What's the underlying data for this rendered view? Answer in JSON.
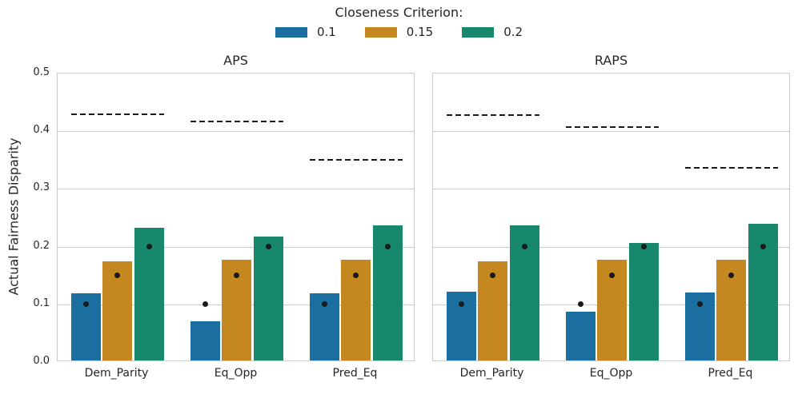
{
  "legend": {
    "title": "Closeness Criterion:",
    "entries": [
      {
        "label": "0.1",
        "color": "#1B6FA0"
      },
      {
        "label": "0.15",
        "color": "#C5871F"
      },
      {
        "label": "0.2",
        "color": "#17886B"
      }
    ]
  },
  "chart_data": {
    "type": "bar",
    "title": "",
    "xlabel": "",
    "ylabel": "Actual Fairness Disparity",
    "ylim": [
      0,
      0.5
    ],
    "yticks": [
      0,
      0.1,
      0.2,
      0.3,
      0.4,
      0.5
    ],
    "ytick_labels": [
      "0.0",
      "0.1",
      "0.2",
      "0.3",
      "0.4",
      "0.5"
    ],
    "categories": [
      "Dem_Parity",
      "Eq_Opp",
      "Pred_Eq"
    ],
    "grid": true,
    "legend_position": "top-center",
    "marker_color": "#1a1a1a",
    "dashed_line_color": "#1a1a1a",
    "grid_color": "#cccccc",
    "panels": [
      {
        "title": "APS",
        "series": [
          {
            "name": "0.1",
            "color": "#1B6FA0",
            "dot_value": 0.1,
            "values": [
              0.116,
              0.068,
              0.116
            ]
          },
          {
            "name": "0.15",
            "color": "#C5871F",
            "dot_value": 0.15,
            "values": [
              0.172,
              0.174,
              0.174
            ]
          },
          {
            "name": "0.2",
            "color": "#17886B",
            "dot_value": 0.2,
            "values": [
              0.23,
              0.215,
              0.234
            ]
          }
        ],
        "dashed_reference_lines": [
          0.43,
          0.417,
          0.35
        ]
      },
      {
        "title": "RAPS",
        "series": [
          {
            "name": "0.1",
            "color": "#1B6FA0",
            "dot_value": 0.1,
            "values": [
              0.119,
              0.084,
              0.118
            ]
          },
          {
            "name": "0.15",
            "color": "#C5871F",
            "dot_value": 0.15,
            "values": [
              0.172,
              0.174,
              0.174
            ]
          },
          {
            "name": "0.2",
            "color": "#17886B",
            "dot_value": 0.2,
            "values": [
              0.234,
              0.204,
              0.237
            ]
          }
        ],
        "dashed_reference_lines": [
          0.428,
          0.407,
          0.336
        ]
      }
    ]
  }
}
